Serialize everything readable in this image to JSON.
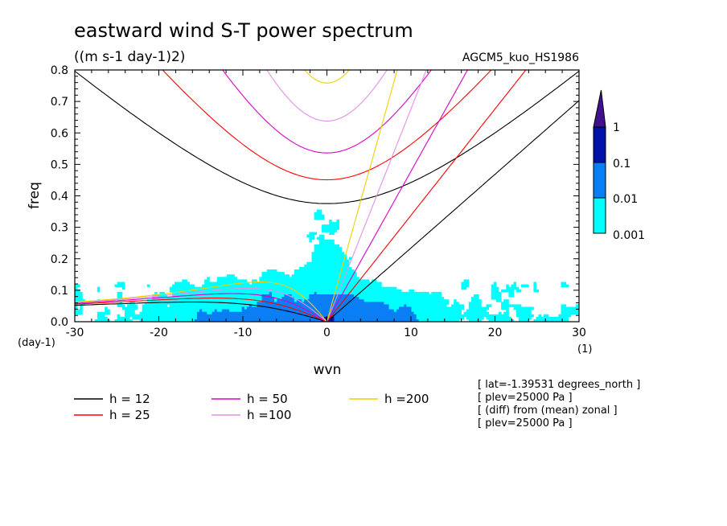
{
  "chart_data": {
    "type": "heatmap",
    "title": "eastward wind S-T power spectrum",
    "subtitle": "((m s-1 day-1)2)",
    "dataset_label": "AGCM5_kuo_HS1986",
    "xlabel": "wvn",
    "ylabel": "freq",
    "x_unit": "(1)",
    "y_unit": "(day-1)",
    "xlim": [
      -30,
      30
    ],
    "ylim": [
      0,
      0.8
    ],
    "x_ticks": [
      -30,
      -20,
      -10,
      0,
      10,
      20,
      30
    ],
    "y_ticks": [
      0.0,
      0.1,
      0.2,
      0.3,
      0.4,
      0.5,
      0.6,
      0.7,
      0.8
    ],
    "x_tick_labels": [
      "-30",
      "-20",
      "-10",
      "0",
      "10",
      "20",
      "30"
    ],
    "y_tick_labels": [
      "0.0",
      "0.1",
      "0.2",
      "0.3",
      "0.4",
      "0.5",
      "0.6",
      "0.7",
      "0.8"
    ],
    "color_levels": [
      {
        "min": 0.001,
        "max": 0.01,
        "color": "#00ffff"
      },
      {
        "min": 0.01,
        "max": 0.1,
        "color": "#0a7ef5"
      },
      {
        "min": 0.1,
        "max": 1,
        "color": "#0012a8"
      },
      {
        "min": 1,
        "max": null,
        "color": "#42128e"
      }
    ],
    "colorbar_labels": [
      "0.001",
      "0.01",
      "0.1",
      "1"
    ],
    "dispersion_curves": [
      {
        "name": "h = 12",
        "h": 12,
        "color": "#000000"
      },
      {
        "name": "h = 25",
        "h": 25,
        "color": "#ff0000"
      },
      {
        "name": "h = 50",
        "h": 50,
        "color": "#dc00c8"
      },
      {
        "name": "h =100",
        "h": 100,
        "color": "#e091e6"
      },
      {
        "name": "h =200",
        "h": 200,
        "color": "#f0d000"
      }
    ],
    "annotations": [
      "[ lat=-1.39531 degrees_north ]",
      "[ plev=25000 Pa ]",
      "[ (diff) from (mean) zonal ]",
      "[ plev=25000 Pa ]"
    ]
  }
}
